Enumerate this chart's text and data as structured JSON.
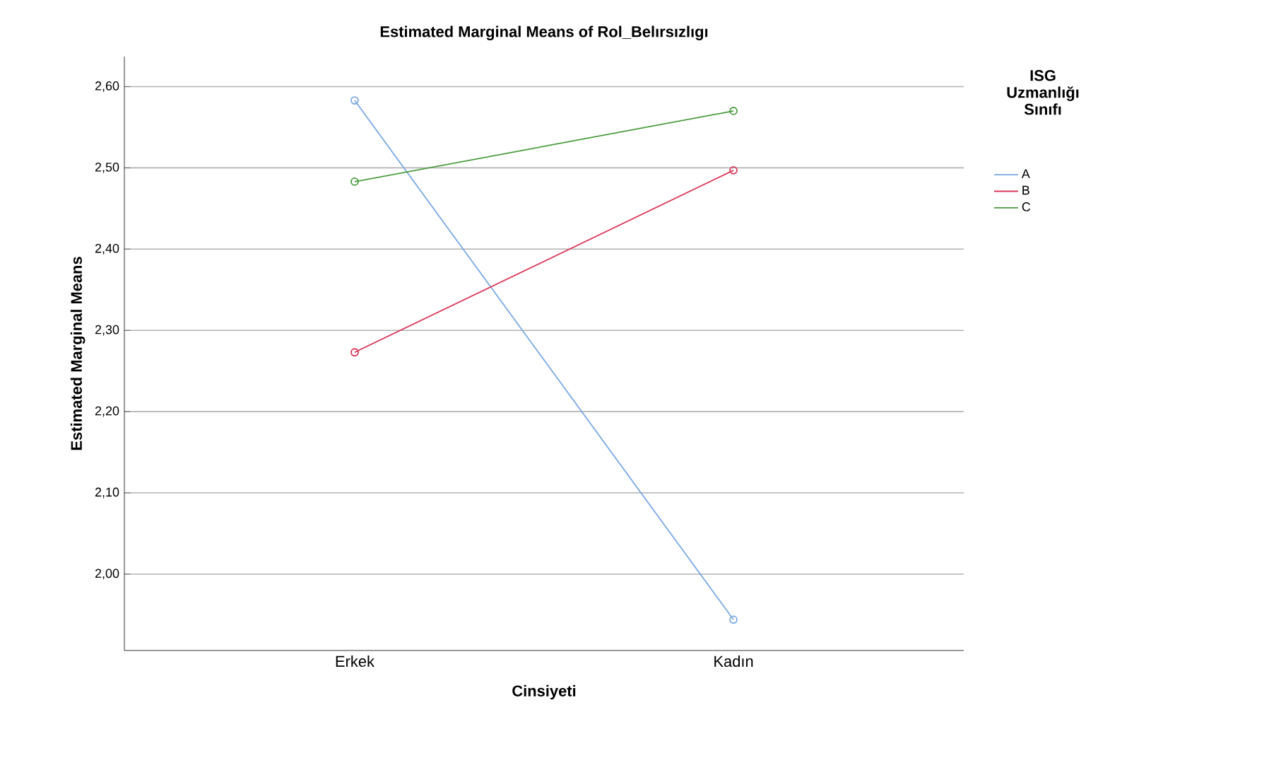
{
  "chart_data": {
    "type": "line",
    "title": "Estimated Marginal Means of Rol_Belırsızlıgı",
    "xlabel": "Cinsiyeti",
    "ylabel": "Estimated Marginal Means",
    "legend_title": "ISG Uzmanlığı Sınıfı",
    "categories": [
      "Erkek",
      "Kadın"
    ],
    "series": [
      {
        "name": "A",
        "color": "#79a7e3",
        "values": [
          2.583,
          1.944
        ]
      },
      {
        "name": "B",
        "color": "#d9395a",
        "values": [
          2.273,
          2.497
        ]
      },
      {
        "name": "C",
        "color": "#4a9a3e",
        "values": [
          2.483,
          2.57
        ]
      }
    ],
    "ylim": [
      1.906,
      2.637
    ],
    "yticks": [
      {
        "value": 2.0,
        "label": "2,00"
      },
      {
        "value": 2.1,
        "label": "2,10"
      },
      {
        "value": 2.2,
        "label": "2,20"
      },
      {
        "value": 2.3,
        "label": "2,30"
      },
      {
        "value": 2.4,
        "label": "2,40"
      },
      {
        "value": 2.5,
        "label": "2,50"
      },
      {
        "value": 2.6,
        "label": "2,60"
      }
    ],
    "grid": "y",
    "legend": "right",
    "marker": "circle",
    "line_style": "solid"
  }
}
